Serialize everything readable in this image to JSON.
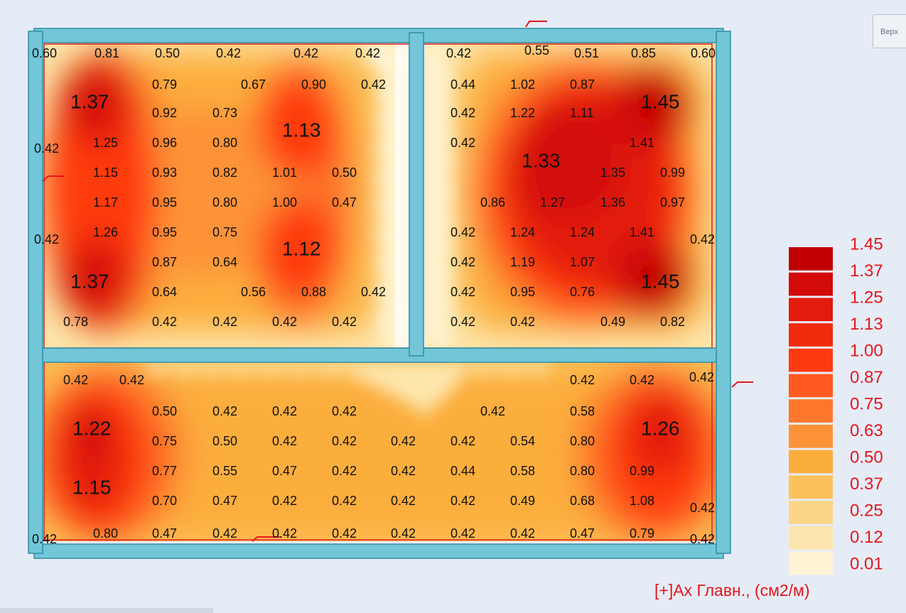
{
  "view_button": {
    "label": "Верх"
  },
  "legend": {
    "title": "[+]Ax Главн., (см2/м)",
    "values": [
      "1.45",
      "1.37",
      "1.25",
      "1.13",
      "1.00",
      "0.87",
      "0.75",
      "0.63",
      "0.50",
      "0.37",
      "0.25",
      "0.12",
      "0.01"
    ],
    "colors": [
      "#c00000",
      "#d30a0a",
      "#e41a0c",
      "#f22a0c",
      "#fe3b10",
      "#ff5a1f",
      "#fd772c",
      "#fd9338",
      "#fcae3c",
      "#fcc15a",
      "#fcd687",
      "#fde6ad",
      "#fef4d4"
    ]
  },
  "labels": [
    [
      "0.60",
      45,
      76,
      "s"
    ],
    [
      "0.81",
      133,
      76,
      "s"
    ],
    [
      "0.50",
      218,
      76,
      "s"
    ],
    [
      "0.42",
      304,
      76,
      "s"
    ],
    [
      "0.42",
      413,
      76,
      "s"
    ],
    [
      "0.42",
      500,
      76,
      "s"
    ],
    [
      "0.42",
      628,
      76,
      "s"
    ],
    [
      "0.55",
      738,
      72,
      "s"
    ],
    [
      "0.51",
      808,
      76,
      "s"
    ],
    [
      "0.85",
      888,
      76,
      "s"
    ],
    [
      "0.60",
      972,
      76,
      "s"
    ],
    [
      "0.79",
      214,
      120,
      "s"
    ],
    [
      "0.67",
      339,
      120,
      "s"
    ],
    [
      "0.90",
      424,
      120,
      "s"
    ],
    [
      "0.42",
      508,
      120,
      "s"
    ],
    [
      "0.44",
      634,
      120,
      "s"
    ],
    [
      "1.02",
      718,
      120,
      "s"
    ],
    [
      "0.87",
      802,
      120,
      "s"
    ],
    [
      "1.37",
      99,
      145,
      "l"
    ],
    [
      "1.45",
      902,
      145,
      "l"
    ],
    [
      "0.92",
      214,
      160,
      "s"
    ],
    [
      "0.73",
      299,
      160,
      "s"
    ],
    [
      "0.42",
      634,
      160,
      "s"
    ],
    [
      "1.22",
      718,
      160,
      "s"
    ],
    [
      "1.11",
      802,
      160,
      "s"
    ],
    [
      "1.13",
      397,
      185,
      "l"
    ],
    [
      "0.42",
      48,
      210,
      "s"
    ],
    [
      "1.25",
      131,
      202,
      "s"
    ],
    [
      "0.96",
      214,
      202,
      "s"
    ],
    [
      "0.80",
      299,
      202,
      "s"
    ],
    [
      "0.42",
      634,
      202,
      "s"
    ],
    [
      "1.41",
      886,
      202,
      "s"
    ],
    [
      "1.33",
      734,
      228,
      "l"
    ],
    [
      "1.15",
      131,
      244,
      "s"
    ],
    [
      "0.93",
      214,
      244,
      "s"
    ],
    [
      "0.82",
      299,
      244,
      "s"
    ],
    [
      "1.01",
      383,
      244,
      "s"
    ],
    [
      "0.50",
      467,
      244,
      "s"
    ],
    [
      "1.35",
      845,
      244,
      "s"
    ],
    [
      "0.99",
      929,
      244,
      "s"
    ],
    [
      "1.17",
      131,
      286,
      "s"
    ],
    [
      "0.95",
      214,
      286,
      "s"
    ],
    [
      "0.80",
      299,
      286,
      "s"
    ],
    [
      "1.00",
      383,
      286,
      "s"
    ],
    [
      "0.47",
      467,
      286,
      "s"
    ],
    [
      "0.86",
      676,
      286,
      "s"
    ],
    [
      "1.27",
      760,
      286,
      "s"
    ],
    [
      "1.36",
      845,
      286,
      "s"
    ],
    [
      "0.97",
      929,
      286,
      "s"
    ],
    [
      "0.42",
      48,
      338,
      "s"
    ],
    [
      "1.26",
      131,
      328,
      "s"
    ],
    [
      "0.95",
      214,
      328,
      "s"
    ],
    [
      "0.75",
      299,
      328,
      "s"
    ],
    [
      "0.42",
      634,
      328,
      "s"
    ],
    [
      "1.24",
      718,
      328,
      "s"
    ],
    [
      "1.24",
      802,
      328,
      "s"
    ],
    [
      "1.41",
      886,
      328,
      "s"
    ],
    [
      "0.42",
      971,
      338,
      "s"
    ],
    [
      "1.12",
      397,
      352,
      "l"
    ],
    [
      "0.87",
      214,
      370,
      "s"
    ],
    [
      "0.64",
      299,
      370,
      "s"
    ],
    [
      "0.42",
      634,
      370,
      "s"
    ],
    [
      "1.19",
      718,
      370,
      "s"
    ],
    [
      "1.07",
      802,
      370,
      "s"
    ],
    [
      "1.37",
      99,
      398,
      "l"
    ],
    [
      "1.45",
      902,
      398,
      "l"
    ],
    [
      "0.64",
      214,
      412,
      "s"
    ],
    [
      "0.56",
      339,
      412,
      "s"
    ],
    [
      "0.88",
      424,
      412,
      "s"
    ],
    [
      "0.42",
      508,
      412,
      "s"
    ],
    [
      "0.42",
      634,
      412,
      "s"
    ],
    [
      "0.95",
      718,
      412,
      "s"
    ],
    [
      "0.76",
      802,
      412,
      "s"
    ],
    [
      "0.78",
      89,
      454,
      "s"
    ],
    [
      "0.42",
      214,
      454,
      "s"
    ],
    [
      "0.42",
      299,
      454,
      "s"
    ],
    [
      "0.42",
      383,
      454,
      "s"
    ],
    [
      "0.42",
      467,
      454,
      "s"
    ],
    [
      "0.42",
      634,
      454,
      "s"
    ],
    [
      "0.42",
      718,
      454,
      "s"
    ],
    [
      "0.49",
      845,
      454,
      "s"
    ],
    [
      "0.82",
      929,
      454,
      "s"
    ],
    [
      "0.42",
      89,
      536,
      "s"
    ],
    [
      "0.42",
      168,
      536,
      "s"
    ],
    [
      "0.42",
      802,
      536,
      "s"
    ],
    [
      "0.42",
      886,
      536,
      "s"
    ],
    [
      "0.42",
      970,
      532,
      "s"
    ],
    [
      "0.50",
      214,
      580,
      "s"
    ],
    [
      "0.42",
      299,
      580,
      "s"
    ],
    [
      "0.42",
      383,
      580,
      "s"
    ],
    [
      "0.42",
      467,
      580,
      "s"
    ],
    [
      "0.42",
      676,
      580,
      "s"
    ],
    [
      "0.58",
      802,
      580,
      "s"
    ],
    [
      "1.22",
      102,
      605,
      "l"
    ],
    [
      "1.26",
      902,
      605,
      "l"
    ],
    [
      "0.75",
      214,
      622,
      "s"
    ],
    [
      "0.50",
      299,
      622,
      "s"
    ],
    [
      "0.42",
      383,
      622,
      "s"
    ],
    [
      "0.42",
      467,
      622,
      "s"
    ],
    [
      "0.42",
      550,
      622,
      "s"
    ],
    [
      "0.42",
      634,
      622,
      "s"
    ],
    [
      "0.54",
      718,
      622,
      "s"
    ],
    [
      "0.80",
      802,
      622,
      "s"
    ],
    [
      "0.77",
      214,
      664,
      "s"
    ],
    [
      "0.55",
      299,
      664,
      "s"
    ],
    [
      "0.47",
      383,
      664,
      "s"
    ],
    [
      "0.42",
      467,
      664,
      "s"
    ],
    [
      "0.42",
      550,
      664,
      "s"
    ],
    [
      "0.44",
      634,
      664,
      "s"
    ],
    [
      "0.58",
      718,
      664,
      "s"
    ],
    [
      "0.80",
      802,
      664,
      "s"
    ],
    [
      "0.99",
      886,
      664,
      "s"
    ],
    [
      "1.15",
      102,
      688,
      "l"
    ],
    [
      "0.70",
      214,
      706,
      "s"
    ],
    [
      "0.47",
      299,
      706,
      "s"
    ],
    [
      "0.42",
      383,
      706,
      "s"
    ],
    [
      "0.42",
      467,
      706,
      "s"
    ],
    [
      "0.42",
      550,
      706,
      "s"
    ],
    [
      "0.42",
      634,
      706,
      "s"
    ],
    [
      "0.49",
      718,
      706,
      "s"
    ],
    [
      "0.68",
      802,
      706,
      "s"
    ],
    [
      "1.08",
      886,
      706,
      "s"
    ],
    [
      "0.42",
      971,
      716,
      "s"
    ],
    [
      "0.42",
      45,
      760,
      "s"
    ],
    [
      "0.80",
      131,
      752,
      "s"
    ],
    [
      "0.47",
      214,
      752,
      "s"
    ],
    [
      "0.42",
      299,
      752,
      "s"
    ],
    [
      "0.42",
      383,
      752,
      "s"
    ],
    [
      "0.42",
      467,
      752,
      "s"
    ],
    [
      "0.42",
      550,
      752,
      "s"
    ],
    [
      "0.42",
      634,
      752,
      "s"
    ],
    [
      "0.42",
      718,
      752,
      "s"
    ],
    [
      "0.47",
      802,
      752,
      "s"
    ],
    [
      "0.79",
      886,
      752,
      "s"
    ],
    [
      "0.42",
      971,
      760,
      "s"
    ]
  ]
}
